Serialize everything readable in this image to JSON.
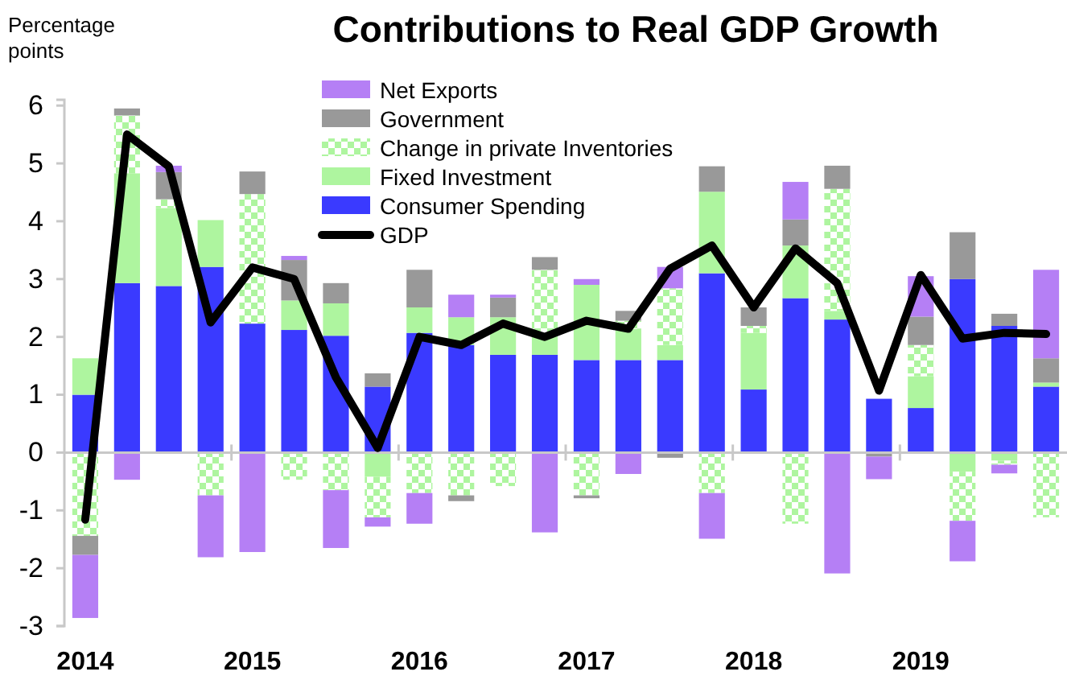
{
  "chart_data": {
    "type": "bar",
    "stacked": true,
    "title": "Contributions to Real GDP Growth",
    "ylabel": "Percentage points",
    "categories": [
      "2014",
      null,
      null,
      null,
      "2015",
      null,
      null,
      null,
      "2016",
      null,
      null,
      null,
      "2017",
      null,
      null,
      null,
      "2018",
      null,
      null,
      null,
      "2019",
      null,
      null,
      null
    ],
    "ylim": [
      -3,
      6.1
    ],
    "yticks": [
      -3,
      -2,
      -1,
      0,
      1,
      2,
      3,
      4,
      5,
      6
    ],
    "legend": "top",
    "series": [
      {
        "name": "Consumer Spending",
        "color": "#3a3aff",
        "values": [
          1.0,
          2.93,
          2.88,
          3.21,
          2.23,
          2.12,
          2.02,
          1.14,
          2.07,
          1.86,
          1.69,
          1.69,
          1.6,
          1.6,
          1.6,
          3.1,
          1.09,
          2.67,
          2.3,
          0.93,
          0.77,
          3.0,
          2.19,
          1.14
        ]
      },
      {
        "name": "Fixed Investment",
        "color": "#aef59f",
        "values": [
          0.63,
          1.9,
          1.35,
          0.81,
          0,
          0.51,
          0.56,
          -0.42,
          0.44,
          0.48,
          0.65,
          0.31,
          1.3,
          0.54,
          0.26,
          1.41,
          0.98,
          0.91,
          0.15,
          null,
          0.55,
          -0.33,
          -0.14,
          0.07
        ]
      },
      {
        "name": "Change in private Inventories",
        "color": "#aef59f",
        "values": [
          -1.44,
          1.0,
          0.15,
          -0.74,
          2.24,
          -0.47,
          -0.65,
          -0.7,
          -0.7,
          -0.74,
          -0.58,
          1.16,
          -0.74,
          0.14,
          0.98,
          -0.7,
          0.12,
          -1.23,
          2.11,
          0,
          0.54,
          -0.85,
          -0.07,
          -1.12
        ]
      },
      {
        "name": "Government",
        "color": "#999999",
        "values": [
          -0.33,
          0.12,
          0.47,
          0,
          0.39,
          0.7,
          0.35,
          0.23,
          0.65,
          -0.1,
          0.34,
          0.22,
          -0.05,
          0.17,
          -0.09,
          0.44,
          0.32,
          0.45,
          0.4,
          -0.07,
          0.49,
          0.81,
          0.21,
          0.42
        ]
      },
      {
        "name": "Net Exports",
        "color": "#b57ff5",
        "values": [
          -1.09,
          -0.47,
          0.11,
          -1.07,
          -1.72,
          0.07,
          -1.0,
          -0.16,
          -0.53,
          0.39,
          0.05,
          -1.38,
          0.1,
          -0.37,
          0.37,
          -0.79,
          0,
          0.65,
          -2.09,
          -0.39,
          0.7,
          -0.7,
          -0.15,
          1.53
        ]
      },
      {
        "name": "GDP",
        "type": "line",
        "color": "#000000",
        "values": [
          -1.16,
          5.5,
          4.95,
          2.25,
          3.2,
          3.0,
          1.3,
          0.08,
          2.0,
          1.86,
          2.23,
          2.0,
          2.28,
          2.14,
          3.18,
          3.58,
          2.51,
          3.53,
          2.93,
          1.07,
          3.07,
          1.97,
          2.07,
          2.05
        ]
      }
    ]
  }
}
